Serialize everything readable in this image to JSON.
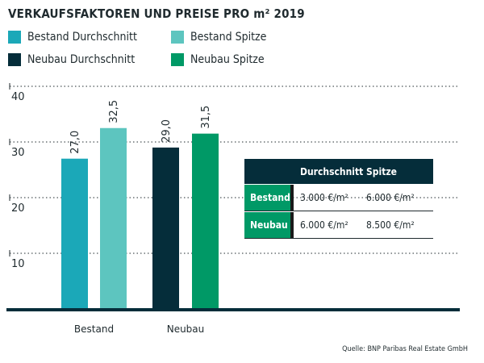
{
  "chart_data": {
    "type": "bar",
    "title": "VERKAUFSFAKTOREN UND PREISE PRO m² 2019",
    "categories": [
      "Bestand",
      "Neubau"
    ],
    "series": [
      {
        "name": "Bestand Durchschnitt",
        "values": [
          27.0,
          null
        ],
        "labels": [
          "27,0",
          ""
        ],
        "color": "#1ba8b8"
      },
      {
        "name": "Bestand Spitze",
        "values": [
          32.5,
          null
        ],
        "labels": [
          "32,5",
          ""
        ],
        "color": "#5dc5bf"
      },
      {
        "name": "Neubau Durchschnitt",
        "values": [
          null,
          29.0
        ],
        "labels": [
          "",
          "29,0"
        ],
        "color": "#052d3a"
      },
      {
        "name": "Neubau Spitze",
        "values": [
          null,
          31.5
        ],
        "labels": [
          "",
          "31,5"
        ],
        "color": "#009966"
      }
    ],
    "ylim": [
      0,
      40
    ],
    "yticks": [
      "10",
      "20",
      "30",
      "40"
    ],
    "grid": true,
    "legend": "top"
  },
  "table": {
    "headers": [
      "",
      "Durchschnitt",
      "Spitze"
    ],
    "rows": [
      {
        "label": "Bestand",
        "values": [
          "3.000 €/m²",
          "6.000 €/m²"
        ]
      },
      {
        "label": "Neubau",
        "values": [
          "6.000 €/m²",
          "8.500 €/m²"
        ]
      }
    ]
  },
  "source": "Quelle: BNP Paribas Real Estate GmbH"
}
